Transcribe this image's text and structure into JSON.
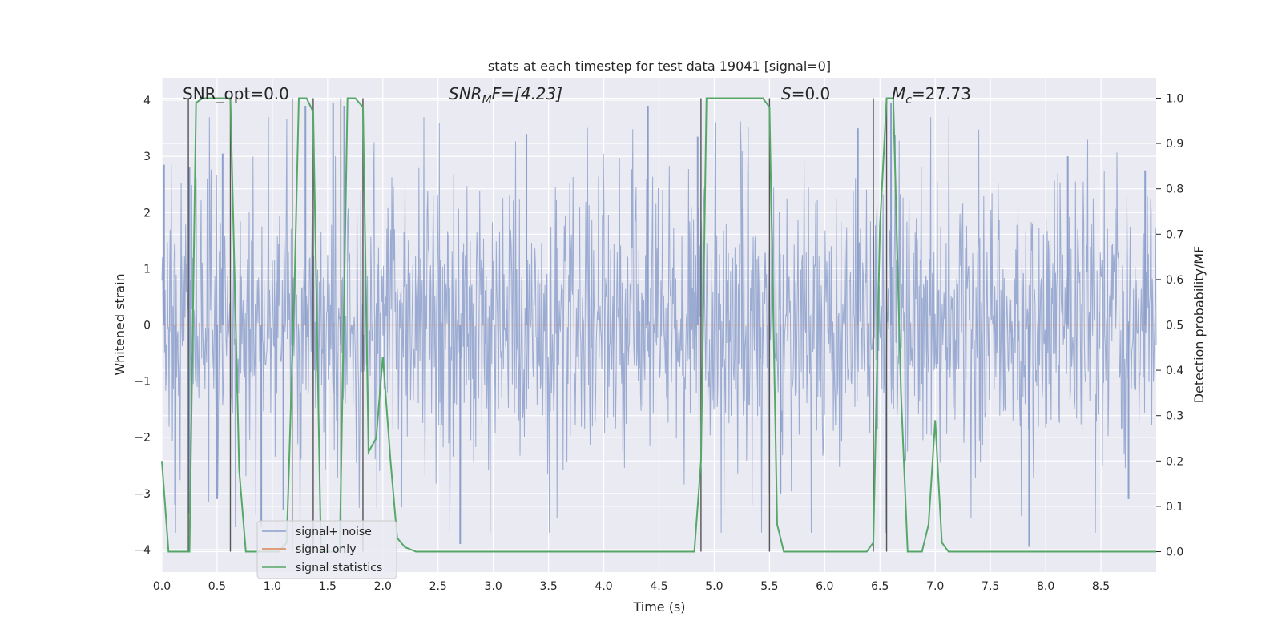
{
  "chart_data": {
    "type": "line",
    "title": "stats at each timestep for test data 19041 [signal=0]",
    "xlabel": "Time (s)",
    "ylabel_left": "Whitened strain",
    "ylabel_right": "Detection probability/MF",
    "xlim": [
      0,
      9.0
    ],
    "ylim_left": [
      -4.4,
      4.4
    ],
    "ylim_right": [
      -0.045,
      1.045
    ],
    "grid": true,
    "x_ticks": [
      "0.0",
      "0.5",
      "1.0",
      "1.5",
      "2.0",
      "2.5",
      "3.0",
      "3.5",
      "4.0",
      "4.5",
      "5.0",
      "5.5",
      "6.0",
      "6.5",
      "7.0",
      "7.5",
      "8.0",
      "8.5"
    ],
    "x_tick_values": [
      0,
      0.5,
      1,
      1.5,
      2,
      2.5,
      3,
      3.5,
      4,
      4.5,
      5,
      5.5,
      6,
      6.5,
      7,
      7.5,
      8,
      8.5
    ],
    "left_ticks": [
      "−4",
      "−3",
      "−2",
      "−1",
      "0",
      "1",
      "2",
      "3",
      "4"
    ],
    "left_tick_values": [
      -4,
      -3,
      -2,
      -1,
      0,
      1,
      2,
      3,
      4
    ],
    "right_ticks": [
      "0.0",
      "0.1",
      "0.2",
      "0.3",
      "0.4",
      "0.5",
      "0.6",
      "0.7",
      "0.8",
      "0.9",
      "1.0"
    ],
    "right_tick_values": [
      0,
      0.1,
      0.2,
      0.3,
      0.4,
      0.5,
      0.6,
      0.7,
      0.8,
      0.9,
      1.0
    ],
    "annotations": {
      "snr_opt": "SNR_opt=0.0",
      "snr_mf_sym": "SNR",
      "snr_mf_sub": "M",
      "snr_mf_rest": "F=[4.23]",
      "s_sym": "S",
      "s_rest": "=0.0",
      "mc_sym": "M",
      "mc_sub": "c",
      "mc_rest": "=27.73"
    },
    "legend": {
      "placement": "lower-left",
      "entries": [
        {
          "label": "signal+ noise",
          "color": "#8da0cb"
        },
        {
          "label": "signal only",
          "color": "#dd8452"
        },
        {
          "label": "signal statistics",
          "color": "#55a868"
        }
      ]
    },
    "series": [
      {
        "name": "signal+ noise",
        "axis": "left",
        "color": "#8da0cb",
        "description": "whitened noise, amplitude envelope approx ±1.6 with spikes to ±3.9",
        "envelope": 1.6,
        "peaks": [
          {
            "x": 0.02,
            "y": 2.85
          },
          {
            "x": 0.25,
            "y": 2.8
          },
          {
            "x": 0.55,
            "y": 3.05
          },
          {
            "x": 1.3,
            "y": 3.9
          },
          {
            "x": 1.55,
            "y": 3.95
          },
          {
            "x": 1.65,
            "y": 3.9
          },
          {
            "x": 3.3,
            "y": 3.4
          },
          {
            "x": 4.4,
            "y": 3.9
          },
          {
            "x": 4.85,
            "y": 3.35
          },
          {
            "x": 6.3,
            "y": 3.5
          },
          {
            "x": 6.6,
            "y": 3.95
          },
          {
            "x": 8.2,
            "y": 3.0
          },
          {
            "x": 8.9,
            "y": 2.75
          }
        ],
        "troughs": [
          {
            "x": 0.12,
            "y": -3.2
          },
          {
            "x": 0.25,
            "y": -3.35
          },
          {
            "x": 0.5,
            "y": -3.1
          },
          {
            "x": 0.9,
            "y": -3.6
          },
          {
            "x": 1.1,
            "y": -3.3
          },
          {
            "x": 2.7,
            "y": -3.9
          },
          {
            "x": 5.6,
            "y": -3.0
          },
          {
            "x": 7.85,
            "y": -3.95
          },
          {
            "x": 8.75,
            "y": -3.1
          }
        ]
      },
      {
        "name": "signal only",
        "axis": "left",
        "color": "#dd8452",
        "x": [
          0,
          9.0
        ],
        "y": [
          0,
          0
        ]
      },
      {
        "name": "signal statistics",
        "axis": "right",
        "color": "#55a868",
        "x": [
          0,
          0.06,
          0.25,
          0.31,
          0.37,
          0.62,
          0.7,
          0.76,
          0.93,
          1.06,
          1.13,
          1.2,
          1.24,
          1.31,
          1.37,
          1.44,
          1.52,
          1.61,
          1.68,
          1.75,
          1.82,
          1.87,
          1.94,
          2.0,
          2.07,
          2.13,
          2.2,
          2.3,
          4.82,
          4.88,
          4.93,
          5.44,
          5.5,
          5.57,
          5.63,
          6.38,
          6.44,
          6.5,
          6.56,
          6.62,
          6.69,
          6.75,
          6.88,
          6.94,
          7.0,
          7.06,
          7.12,
          9.0
        ],
        "y": [
          0.2,
          0.0,
          0.0,
          0.99,
          1.0,
          1.0,
          0.18,
          0.0,
          0.0,
          0.0,
          0.02,
          0.58,
          1.0,
          1.0,
          0.97,
          0.0,
          0.0,
          0.0,
          1.0,
          1.0,
          0.98,
          0.22,
          0.25,
          0.43,
          0.2,
          0.03,
          0.01,
          0.0,
          0.0,
          0.2,
          1.0,
          1.0,
          0.98,
          0.06,
          0.0,
          0.0,
          0.02,
          0.72,
          1.0,
          1.0,
          0.35,
          0.0,
          0.0,
          0.06,
          0.29,
          0.02,
          0.0,
          0.0
        ]
      }
    ],
    "vertical_markers": [
      0.24,
      0.62,
      1.18,
      1.37,
      1.62,
      1.82,
      4.88,
      5.5,
      6.44,
      6.56
    ]
  }
}
